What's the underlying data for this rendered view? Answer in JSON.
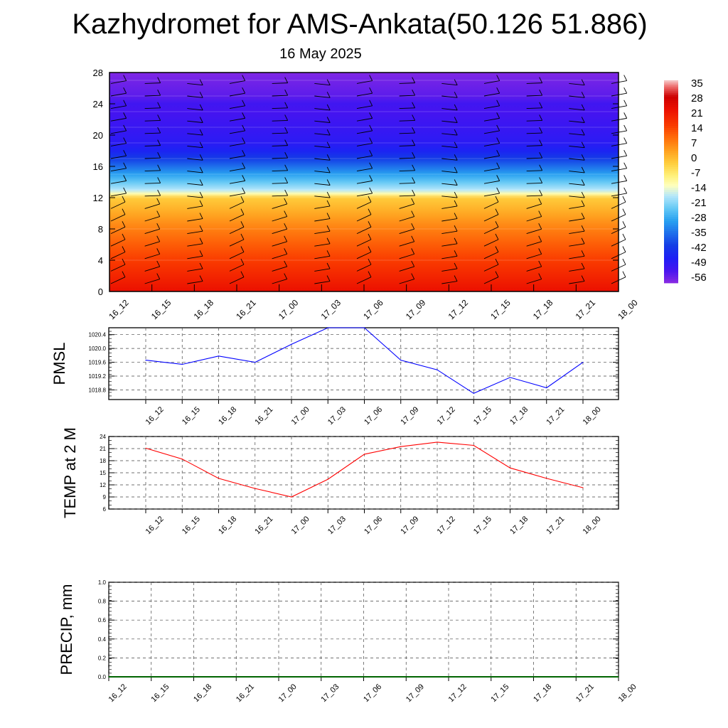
{
  "title": "Kazhydromet for AMS-Ankata(50.126 51.886)",
  "subtitle": "16 May 2025",
  "chart_data": [
    {
      "type": "heatmap",
      "description_of_field": "vertical cross-section, color fill with wind barbs",
      "x_categories": [
        "16_12",
        "16_15",
        "16_18",
        "16_21",
        "17_00",
        "17_03",
        "17_06",
        "17_09",
        "17_12",
        "17_15",
        "17_18",
        "17_21",
        "18_00"
      ],
      "y_ticks": [
        0,
        4,
        8,
        12,
        16,
        20,
        24,
        28
      ],
      "ylim": [
        0,
        28
      ],
      "colorbar": {
        "labels": [
          "35",
          "28",
          "21",
          "14",
          "7",
          "0",
          "-7",
          "-14",
          "-21",
          "-28",
          "-35",
          "-42",
          "-49",
          "-56"
        ],
        "range": [
          -60,
          38
        ]
      },
      "field_profile": {
        "levels": [
          0,
          2,
          4,
          6,
          8,
          10,
          12,
          12.5,
          13,
          14,
          15,
          16,
          17,
          18,
          19,
          20,
          21,
          22,
          23,
          24,
          25,
          26,
          27,
          28
        ],
        "values": [
          24,
          20,
          16,
          12,
          8,
          3,
          -2,
          -12,
          -18,
          -24,
          -30,
          -36,
          -42,
          -47,
          -50,
          -51,
          -52,
          -53,
          -54,
          -53,
          -56,
          -57,
          -58,
          -59
        ]
      }
    },
    {
      "type": "line",
      "ylabel": "PMSL",
      "categories": [
        "16_12",
        "16_15",
        "16_18",
        "16_21",
        "17_00",
        "17_03",
        "17_06",
        "17_09",
        "17_12",
        "17_15",
        "17_18",
        "17_21",
        "18_00"
      ],
      "y_ticks": [
        "1018.8",
        "1019.2",
        "1019.6",
        "1020.0",
        "1020.4"
      ],
      "ylim": [
        1018.52,
        1020.6
      ],
      "values": [
        1019.66,
        1019.54,
        1019.78,
        1019.6,
        1020.12,
        1020.6,
        1020.6,
        1019.66,
        1019.38,
        1018.7,
        1019.16,
        1018.86,
        1019.6
      ],
      "color": "#0000ff"
    },
    {
      "type": "line",
      "ylabel": "TEMP at 2 M",
      "categories": [
        "16_12",
        "16_15",
        "16_18",
        "16_21",
        "17_00",
        "17_03",
        "17_06",
        "17_09",
        "17_12",
        "17_15",
        "17_18",
        "17_21",
        "18_00"
      ],
      "y_ticks": [
        "6",
        "9",
        "12",
        "15",
        "18",
        "21",
        "24"
      ],
      "ylim": [
        6,
        24
      ],
      "values": [
        21.1,
        18.4,
        13.6,
        11.1,
        9.0,
        13.4,
        19.6,
        21.5,
        22.6,
        21.8,
        16.2,
        13.6,
        11.3
      ],
      "color": "#ff0000"
    },
    {
      "type": "line",
      "ylabel": "PRECIP, mm",
      "categories": [
        "16_12",
        "16_15",
        "16_18",
        "16_21",
        "17_00",
        "17_03",
        "17_06",
        "17_09",
        "17_12",
        "17_15",
        "17_18",
        "17_21",
        "18_00"
      ],
      "y_ticks": [
        "0.0",
        "0.2",
        "0.4",
        "0.6",
        "0.8",
        "1.0"
      ],
      "ylim": [
        0,
        1
      ],
      "values": [
        0,
        0,
        0,
        0,
        0,
        0,
        0,
        0,
        0,
        0,
        0,
        0,
        0
      ],
      "color": "#006400"
    }
  ]
}
